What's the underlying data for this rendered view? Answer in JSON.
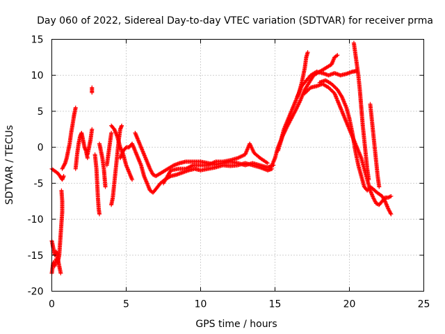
{
  "chart_data": {
    "type": "scatter",
    "title": "Day 060 of 2022, Sidereal Day-to-day VTEC variation (SDTVAR) for receiver prma",
    "xlabel": "GPS time / hours",
    "ylabel": "SDTVAR / TECUs",
    "xlim": [
      0,
      25
    ],
    "ylim": [
      -20,
      15
    ],
    "xticks": [
      0,
      5,
      10,
      15,
      20,
      25
    ],
    "yticks": [
      -20,
      -15,
      -10,
      -5,
      0,
      5,
      10,
      15
    ],
    "grid": true,
    "marker": "+",
    "series": [
      {
        "name": "SDTVAR",
        "color": "#ff0000",
        "traces": [
          [
            [
              0.0,
              -13
            ],
            [
              0.1,
              -14
            ],
            [
              0.2,
              -15
            ],
            [
              0.3,
              -14.5
            ],
            [
              0.4,
              -15.5
            ],
            [
              0.5,
              -16.5
            ],
            [
              0.6,
              -17.5
            ]
          ],
          [
            [
              0.0,
              -17.5
            ],
            [
              0.1,
              -16
            ],
            [
              0.2,
              -16.5
            ],
            [
              0.3,
              -15.5
            ],
            [
              0.4,
              -16
            ],
            [
              0.5,
              -15
            ],
            [
              0.55,
              -13.5
            ],
            [
              0.6,
              -12
            ],
            [
              0.65,
              -10.5
            ],
            [
              0.7,
              -9
            ],
            [
              0.7,
              -7.5
            ],
            [
              0.65,
              -6
            ]
          ],
          [
            [
              0.0,
              -3
            ],
            [
              0.2,
              -3.3
            ],
            [
              0.4,
              -3.6
            ],
            [
              0.55,
              -4
            ],
            [
              0.7,
              -4.5
            ],
            [
              0.8,
              -4
            ]
          ],
          [
            [
              0.7,
              -3
            ],
            [
              0.9,
              -2.2
            ],
            [
              1.0,
              -1.5
            ],
            [
              1.1,
              -0.5
            ],
            [
              1.2,
              0.5
            ],
            [
              1.3,
              2
            ],
            [
              1.4,
              3.2
            ],
            [
              1.5,
              4.5
            ],
            [
              1.6,
              5.5
            ]
          ],
          [
            [
              1.6,
              -3
            ],
            [
              1.7,
              -1
            ],
            [
              1.8,
              0.5
            ],
            [
              1.9,
              1.5
            ],
            [
              2.0,
              2
            ],
            [
              2.1,
              1
            ],
            [
              2.2,
              0
            ],
            [
              2.3,
              -0.5
            ],
            [
              2.4,
              -1.5
            ]
          ],
          [
            [
              2.4,
              -1
            ],
            [
              2.5,
              0
            ],
            [
              2.6,
              1
            ],
            [
              2.7,
              2.5
            ]
          ],
          [
            [
              2.7,
              8.3
            ],
            [
              2.7,
              7.6
            ]
          ],
          [
            [
              2.9,
              -1
            ],
            [
              3.0,
              -3
            ],
            [
              3.05,
              -5
            ],
            [
              3.1,
              -7
            ],
            [
              3.15,
              -8.5
            ],
            [
              3.2,
              -9.3
            ]
          ],
          [
            [
              3.2,
              0.5
            ],
            [
              3.3,
              -0.5
            ],
            [
              3.4,
              -1.5
            ],
            [
              3.5,
              -3
            ],
            [
              3.6,
              -5.5
            ]
          ],
          [
            [
              3.7,
              -2.5
            ],
            [
              3.8,
              -1
            ],
            [
              3.9,
              0.5
            ],
            [
              4.0,
              2
            ]
          ],
          [
            [
              4.0,
              -8
            ],
            [
              4.1,
              -7
            ],
            [
              4.2,
              -5
            ],
            [
              4.3,
              -3
            ],
            [
              4.4,
              -1
            ],
            [
              4.5,
              1
            ],
            [
              4.6,
              2.5
            ],
            [
              4.7,
              3
            ]
          ],
          [
            [
              4.0,
              3
            ],
            [
              4.2,
              2.5
            ],
            [
              4.4,
              1.5
            ],
            [
              4.6,
              0
            ],
            [
              4.8,
              -1
            ],
            [
              5.0,
              -2.5
            ],
            [
              5.2,
              -3.5
            ],
            [
              5.4,
              -4.5
            ]
          ],
          [
            [
              4.6,
              -1.5
            ],
            [
              4.8,
              -0.5
            ],
            [
              5.0,
              0
            ],
            [
              5.2,
              0
            ],
            [
              5.4,
              0.5
            ],
            [
              5.6,
              -0.5
            ],
            [
              5.8,
              -1.5
            ],
            [
              6.0,
              -2.5
            ],
            [
              6.2,
              -4
            ],
            [
              6.4,
              -5
            ],
            [
              6.6,
              -6
            ],
            [
              6.8,
              -6.3
            ],
            [
              7.0,
              -5.8
            ],
            [
              7.3,
              -5
            ],
            [
              7.6,
              -4.5
            ],
            [
              8.0,
              -4
            ],
            [
              8.4,
              -3.8
            ],
            [
              8.8,
              -3.5
            ],
            [
              9.2,
              -3.2
            ],
            [
              9.6,
              -3
            ],
            [
              10.0,
              -3.2
            ],
            [
              10.5,
              -3
            ],
            [
              11.0,
              -2.8
            ],
            [
              11.5,
              -2.5
            ],
            [
              12.0,
              -2.6
            ],
            [
              12.5,
              -2.5
            ],
            [
              13.0,
              -2.2
            ],
            [
              13.5,
              -2.5
            ],
            [
              14.0,
              -2.8
            ],
            [
              14.5,
              -3.2
            ],
            [
              14.8,
              -3
            ]
          ],
          [
            [
              5.6,
              2
            ],
            [
              5.8,
              1
            ],
            [
              6.0,
              0
            ],
            [
              6.2,
              -1
            ],
            [
              6.4,
              -2
            ],
            [
              6.6,
              -3
            ],
            [
              6.8,
              -3.8
            ],
            [
              7.0,
              -4
            ],
            [
              7.4,
              -3.5
            ],
            [
              7.8,
              -3
            ],
            [
              8.2,
              -2.5
            ],
            [
              8.6,
              -2.2
            ],
            [
              9.0,
              -2
            ],
            [
              9.5,
              -2
            ],
            [
              10.0,
              -2
            ],
            [
              10.5,
              -2.2
            ],
            [
              11.0,
              -2.4
            ],
            [
              11.5,
              -2.2
            ],
            [
              12.0,
              -2
            ],
            [
              12.5,
              -2.2
            ],
            [
              13.0,
              -2.5
            ],
            [
              13.5,
              -2.2
            ],
            [
              14.0,
              -2.5
            ],
            [
              14.5,
              -2.8
            ],
            [
              14.9,
              -2.5
            ]
          ],
          [
            [
              7.5,
              -5
            ],
            [
              8.0,
              -3.2
            ],
            [
              8.5,
              -3
            ],
            [
              9.0,
              -3
            ],
            [
              9.5,
              -2.5
            ],
            [
              10.0,
              -2.5
            ],
            [
              10.5,
              -2.5
            ],
            [
              11.0,
              -2
            ],
            [
              11.5,
              -2
            ],
            [
              12.0,
              -1.8
            ],
            [
              12.5,
              -1.5
            ],
            [
              13.0,
              -1
            ],
            [
              13.3,
              0.5
            ],
            [
              13.6,
              -0.8
            ],
            [
              14.0,
              -1.5
            ],
            [
              14.5,
              -2.2
            ]
          ],
          [
            [
              14.8,
              -2.5
            ],
            [
              15.0,
              -1.5
            ],
            [
              15.2,
              0
            ],
            [
              15.4,
              1
            ],
            [
              15.6,
              2.5
            ],
            [
              15.8,
              3.5
            ],
            [
              16.0,
              4.5
            ],
            [
              16.2,
              5.5
            ],
            [
              16.4,
              6.5
            ],
            [
              16.6,
              7.5
            ],
            [
              16.8,
              9
            ],
            [
              17.0,
              11
            ],
            [
              17.1,
              12.5
            ],
            [
              17.2,
              13.2
            ]
          ],
          [
            [
              15.2,
              -0.5
            ],
            [
              15.5,
              1.5
            ],
            [
              15.8,
              2.8
            ],
            [
              16.1,
              4
            ],
            [
              16.4,
              5.2
            ],
            [
              16.7,
              6.5
            ],
            [
              17.0,
              8
            ],
            [
              17.3,
              9
            ],
            [
              17.6,
              10
            ],
            [
              18.0,
              10.5
            ],
            [
              18.4,
              11
            ],
            [
              18.8,
              11.5
            ],
            [
              19.0,
              12.5
            ],
            [
              19.2,
              12.8
            ]
          ],
          [
            [
              16.5,
              7
            ],
            [
              16.8,
              8.5
            ],
            [
              17.0,
              9
            ],
            [
              17.4,
              10
            ],
            [
              17.8,
              10.5
            ],
            [
              18.2,
              10.3
            ],
            [
              18.6,
              10
            ],
            [
              19.0,
              10.3
            ],
            [
              19.4,
              10
            ],
            [
              19.8,
              10.2
            ],
            [
              20.2,
              10.5
            ],
            [
              20.5,
              10.6
            ]
          ],
          [
            [
              17.0,
              7.5
            ],
            [
              17.4,
              8.3
            ],
            [
              17.8,
              8.5
            ],
            [
              18.2,
              8.8
            ],
            [
              18.6,
              8.3
            ],
            [
              19.0,
              7.5
            ],
            [
              19.2,
              6.5
            ],
            [
              19.4,
              5.5
            ],
            [
              19.6,
              4.5
            ],
            [
              19.8,
              3.5
            ],
            [
              20.0,
              2.5
            ],
            [
              20.2,
              1.5
            ],
            [
              20.4,
              0.5
            ],
            [
              20.6,
              -0.5
            ],
            [
              20.8,
              -1.5
            ],
            [
              21.0,
              -3
            ],
            [
              21.2,
              -4.5
            ],
            [
              21.4,
              -6
            ],
            [
              21.6,
              -7
            ],
            [
              21.8,
              -7.8
            ],
            [
              22.0,
              -8
            ],
            [
              22.2,
              -7.5
            ],
            [
              22.4,
              -7
            ],
            [
              22.6,
              -7
            ],
            [
              22.8,
              -6.8
            ]
          ],
          [
            [
              18.0,
              9
            ],
            [
              18.4,
              9.3
            ],
            [
              18.8,
              8.8
            ],
            [
              19.2,
              8
            ],
            [
              19.5,
              7
            ],
            [
              19.8,
              5.5
            ],
            [
              20.0,
              4
            ],
            [
              20.2,
              2
            ],
            [
              20.4,
              -0.5
            ],
            [
              20.6,
              -2.5
            ],
            [
              20.8,
              -4
            ],
            [
              21.0,
              -5.5
            ],
            [
              21.2,
              -6
            ],
            [
              21.4,
              -5.5
            ],
            [
              21.6,
              -5.8
            ],
            [
              21.8,
              -6.2
            ],
            [
              22.0,
              -6.5
            ],
            [
              22.2,
              -6.8
            ],
            [
              22.4,
              -7.5
            ],
            [
              22.6,
              -8.5
            ],
            [
              22.8,
              -9.3
            ]
          ],
          [
            [
              20.3,
              14.5
            ],
            [
              20.4,
              13
            ],
            [
              20.5,
              11.5
            ],
            [
              20.6,
              10
            ],
            [
              20.7,
              8
            ],
            [
              20.8,
              5.5
            ],
            [
              20.9,
              3
            ],
            [
              21.0,
              1
            ],
            [
              21.1,
              -1
            ],
            [
              21.2,
              -3
            ],
            [
              21.3,
              -4.5
            ]
          ],
          [
            [
              21.4,
              6
            ],
            [
              21.5,
              4
            ],
            [
              21.6,
              2
            ],
            [
              21.7,
              0
            ],
            [
              21.8,
              -2
            ],
            [
              21.9,
              -4
            ],
            [
              22.0,
              -5.5
            ]
          ]
        ]
      }
    ]
  }
}
